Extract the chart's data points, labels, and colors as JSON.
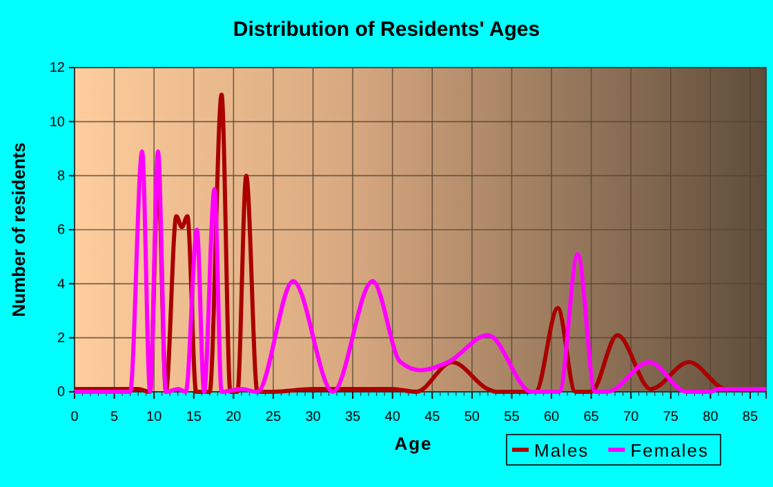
{
  "chart_data": {
    "type": "line",
    "title": "Distribution of Residents' Ages",
    "xlabel": "Age",
    "ylabel": "Number of residents",
    "xlim": [
      0,
      87
    ],
    "xticks": [
      0,
      5,
      10,
      15,
      20,
      25,
      30,
      35,
      40,
      45,
      50,
      55,
      60,
      65,
      70,
      75,
      80,
      85
    ],
    "ylim": [
      0,
      12
    ],
    "yticks": [
      0,
      2,
      4,
      6,
      8,
      10,
      12
    ],
    "grid": true,
    "legend": "bottom right",
    "marker": "none",
    "line_style": "solid",
    "series": [
      {
        "name": "Males",
        "color": "#aa0000",
        "x": [
          0,
          8,
          9.5,
          10.5,
          11.5,
          12.8,
          13.5,
          14.2,
          15.3,
          17,
          18.5,
          19.6,
          20.5,
          21.6,
          23,
          25,
          30,
          40,
          43,
          47.5,
          52,
          53,
          58,
          60.8,
          63,
          65,
          68.3,
          72.5,
          77.3,
          82,
          87
        ],
        "values": [
          0.1,
          0.1,
          0,
          8,
          0,
          6.5,
          6.1,
          6.5,
          0,
          0,
          11,
          0,
          0,
          8,
          0,
          0,
          0.1,
          0.1,
          0,
          1.1,
          0.1,
          0,
          0,
          3.1,
          0,
          0,
          2.1,
          0.1,
          1.1,
          0.1,
          0.1
        ]
      },
      {
        "name": "Females",
        "color": "#ff00ff",
        "x": [
          0,
          7,
          8.5,
          9.5,
          10.5,
          11.5,
          13,
          14,
          15.4,
          16.3,
          17.6,
          18.5,
          21,
          23,
          27.5,
          32.5,
          37.5,
          41,
          43.5,
          47,
          52,
          57.5,
          61,
          63.3,
          65.5,
          67,
          72.3,
          77,
          80,
          81,
          87
        ],
        "values": [
          0,
          0,
          8.9,
          0,
          8.9,
          0,
          0.1,
          0,
          6,
          0,
          7.5,
          0,
          0.1,
          0,
          4.1,
          0,
          4.1,
          1.1,
          0.8,
          1.1,
          2.1,
          0,
          0,
          5.1,
          0,
          0,
          1.1,
          0,
          0,
          0.1,
          0.1
        ]
      }
    ]
  }
}
